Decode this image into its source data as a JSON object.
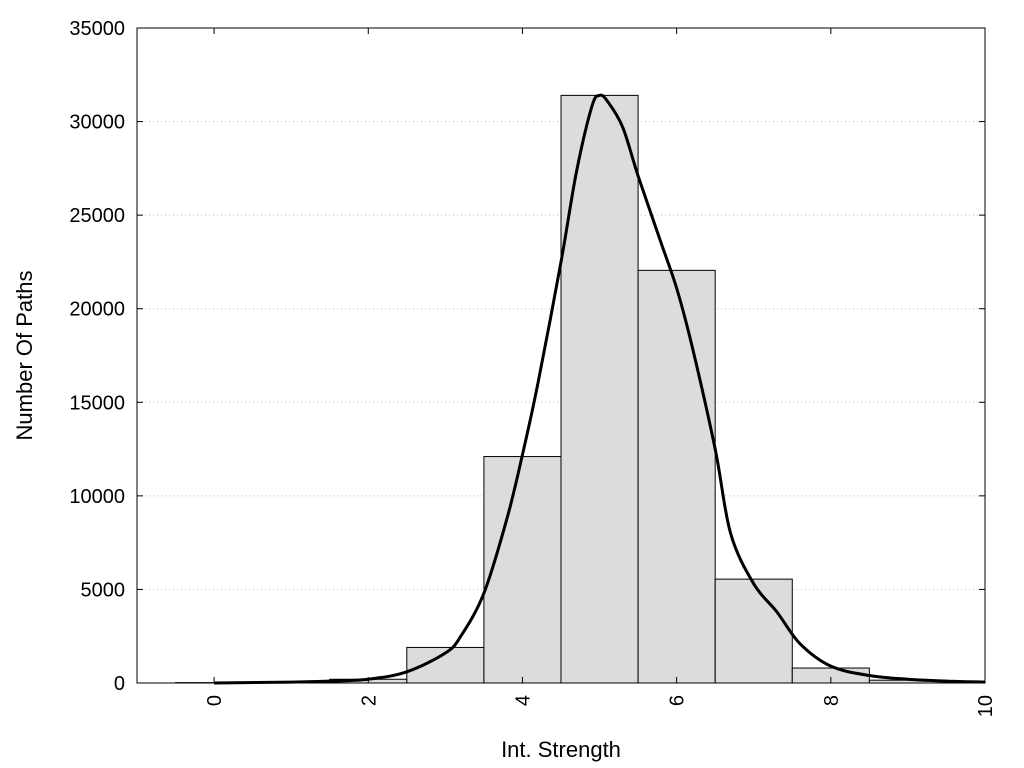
{
  "chart_data": {
    "type": "bar",
    "title": "",
    "xlabel": "Int. Strength",
    "ylabel": "Number Of Paths",
    "xlim": [
      -1,
      10
    ],
    "ylim": [
      0,
      35000
    ],
    "x_ticks": [
      0,
      2,
      4,
      6,
      8,
      10
    ],
    "y_ticks": [
      0,
      5000,
      10000,
      15000,
      20000,
      25000,
      30000,
      35000
    ],
    "grid": "horizontal-dotted",
    "bar_color": "#dcdcdc",
    "line_color": "#000000",
    "bars": [
      {
        "x": 0,
        "value": 20
      },
      {
        "x": 1,
        "value": 60
      },
      {
        "x": 2,
        "value": 200
      },
      {
        "x": 3,
        "value": 1900
      },
      {
        "x": 4,
        "value": 12100
      },
      {
        "x": 5,
        "value": 31400
      },
      {
        "x": 6,
        "value": 22050
      },
      {
        "x": 7,
        "value": 5550
      },
      {
        "x": 8,
        "value": 800
      },
      {
        "x": 9,
        "value": 150
      }
    ],
    "curve": {
      "x": [
        0,
        1,
        1.5,
        2,
        2.5,
        3,
        3.2,
        3.5,
        3.8,
        4,
        4.2,
        4.5,
        4.7,
        4.9,
        5.0,
        5.1,
        5.3,
        5.5,
        5.8,
        6,
        6.2,
        6.5,
        6.7,
        7,
        7.3,
        7.6,
        8,
        8.5,
        9,
        9.5,
        10
      ],
      "y": [
        0,
        50,
        100,
        200,
        600,
        1600,
        2500,
        4800,
        8800,
        12200,
        16000,
        22500,
        27300,
        30800,
        31400,
        31100,
        29700,
        27100,
        23500,
        21100,
        18000,
        12500,
        8000,
        5300,
        3800,
        2100,
        900,
        400,
        200,
        100,
        50
      ]
    }
  }
}
